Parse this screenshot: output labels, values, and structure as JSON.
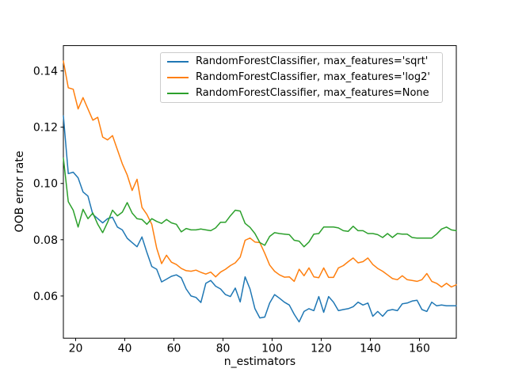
{
  "figure": {
    "background": "#ffffff",
    "spine_color": "#000000"
  },
  "chart_data": {
    "type": "line",
    "title": "",
    "xlabel": "n_estimators",
    "ylabel": "OOB error rate",
    "xlim": [
      15,
      175
    ],
    "ylim": [
      0.045,
      0.149
    ],
    "xticks": [
      20,
      40,
      60,
      80,
      100,
      120,
      140,
      160
    ],
    "yticks": [
      0.06,
      0.08,
      0.1,
      0.12,
      0.14
    ],
    "grid": false,
    "legend": {
      "position": "upper center",
      "border_color": "#cccccc",
      "background": "#ffffff"
    },
    "x": [
      15,
      17,
      19,
      21,
      23,
      25,
      27,
      29,
      31,
      33,
      35,
      37,
      39,
      41,
      43,
      45,
      47,
      49,
      51,
      53,
      55,
      57,
      59,
      61,
      63,
      65,
      67,
      69,
      71,
      73,
      75,
      77,
      79,
      81,
      83,
      85,
      87,
      89,
      91,
      93,
      95,
      97,
      99,
      101,
      103,
      105,
      107,
      109,
      111,
      113,
      115,
      117,
      119,
      121,
      123,
      125,
      127,
      129,
      131,
      133,
      135,
      137,
      139,
      141,
      143,
      145,
      147,
      149,
      151,
      153,
      155,
      157,
      159,
      161,
      163,
      165,
      167,
      169,
      171,
      173,
      175
    ],
    "series": [
      {
        "label": "RandomForestClassifier, max_features='sqrt'",
        "color": "#1f77b4",
        "values": [
          0.124,
          0.1035,
          0.104,
          0.102,
          0.097,
          0.0955,
          0.089,
          0.0875,
          0.086,
          0.0875,
          0.088,
          0.0845,
          0.0835,
          0.0805,
          0.079,
          0.0775,
          0.081,
          0.0755,
          0.0705,
          0.0695,
          0.065,
          0.066,
          0.067,
          0.0675,
          0.0665,
          0.0625,
          0.06,
          0.0595,
          0.0577,
          0.0645,
          0.0655,
          0.0635,
          0.0625,
          0.0605,
          0.0598,
          0.0628,
          0.0579,
          0.0668,
          0.0625,
          0.0555,
          0.0522,
          0.0525,
          0.0575,
          0.0605,
          0.0592,
          0.0578,
          0.0568,
          0.0535,
          0.0508,
          0.0545,
          0.0555,
          0.0548,
          0.0598,
          0.0542,
          0.0598,
          0.0578,
          0.0548,
          0.0552,
          0.0555,
          0.0562,
          0.0578,
          0.0568,
          0.0575,
          0.0528,
          0.0545,
          0.0528,
          0.0548,
          0.0552,
          0.0548,
          0.0572,
          0.0575,
          0.0582,
          0.0585,
          0.0552,
          0.0545,
          0.0578,
          0.0565,
          0.0568,
          0.0565,
          0.0565,
          0.0565
        ]
      },
      {
        "label": "RandomForestClassifier, max_features='log2'",
        "color": "#ff7f0e",
        "values": [
          0.1435,
          0.134,
          0.1335,
          0.1265,
          0.1305,
          0.1265,
          0.1225,
          0.1235,
          0.1165,
          0.1155,
          0.117,
          0.112,
          0.107,
          0.103,
          0.0975,
          0.1015,
          0.0915,
          0.089,
          0.0855,
          0.077,
          0.0715,
          0.0745,
          0.072,
          0.0712,
          0.0698,
          0.069,
          0.0688,
          0.0692,
          0.0684,
          0.0678,
          0.0685,
          0.0668,
          0.0685,
          0.0695,
          0.0708,
          0.0718,
          0.0738,
          0.0798,
          0.0806,
          0.0792,
          0.079,
          0.0752,
          0.071,
          0.0688,
          0.0675,
          0.0667,
          0.0668,
          0.0652,
          0.0695,
          0.0672,
          0.07,
          0.0668,
          0.0665,
          0.07,
          0.0666,
          0.0666,
          0.07,
          0.0708,
          0.0722,
          0.0735,
          0.0718,
          0.0722,
          0.0735,
          0.0712,
          0.0698,
          0.0688,
          0.0675,
          0.0662,
          0.0658,
          0.0672,
          0.0658,
          0.0655,
          0.0652,
          0.0658,
          0.068,
          0.0652,
          0.0645,
          0.0632,
          0.0645,
          0.0632,
          0.064
        ]
      },
      {
        "label": "RandomForestClassifier, max_features=None",
        "color": "#2ca02c",
        "values": [
          0.109,
          0.0935,
          0.0905,
          0.0845,
          0.0908,
          0.0875,
          0.0895,
          0.0855,
          0.0825,
          0.0862,
          0.0905,
          0.0885,
          0.0898,
          0.0932,
          0.0895,
          0.0875,
          0.0872,
          0.0855,
          0.0875,
          0.0865,
          0.0858,
          0.0872,
          0.086,
          0.0855,
          0.0828,
          0.084,
          0.0835,
          0.0835,
          0.0838,
          0.0835,
          0.0832,
          0.0842,
          0.0862,
          0.0862,
          0.0885,
          0.0905,
          0.0902,
          0.0858,
          0.0844,
          0.0822,
          0.079,
          0.078,
          0.0812,
          0.0825,
          0.0822,
          0.082,
          0.0818,
          0.0798,
          0.0795,
          0.0775,
          0.0792,
          0.082,
          0.0822,
          0.0845,
          0.0845,
          0.0845,
          0.0842,
          0.0832,
          0.083,
          0.0848,
          0.0832,
          0.0832,
          0.0822,
          0.0822,
          0.0818,
          0.0808,
          0.0822,
          0.0808,
          0.0822,
          0.082,
          0.082,
          0.0808,
          0.0806,
          0.0806,
          0.0806,
          0.0806,
          0.082,
          0.0838,
          0.0845,
          0.0835,
          0.0832
        ]
      }
    ]
  }
}
